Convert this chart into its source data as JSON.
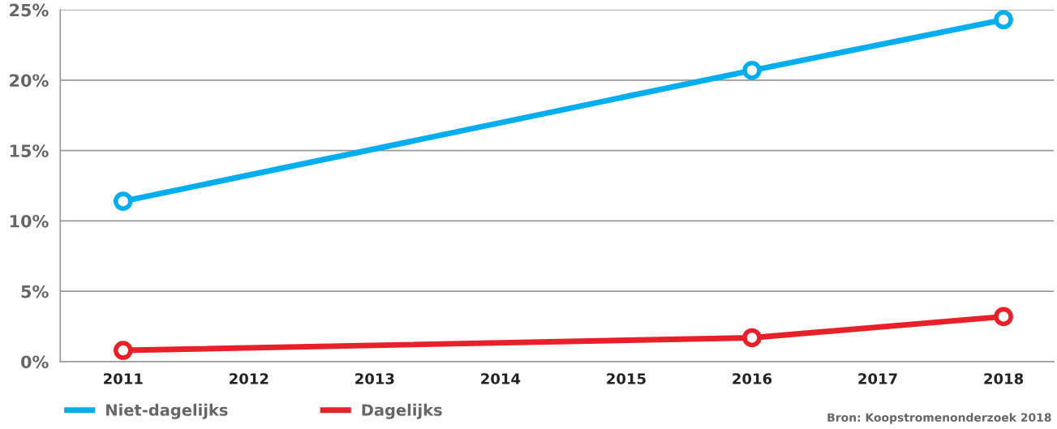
{
  "chart_data": {
    "type": "line",
    "x": [
      2011,
      2016,
      2018
    ],
    "series": [
      {
        "name": "Niet-dagelijks",
        "color": "#00aeef",
        "values": [
          11.4,
          20.7,
          24.3
        ]
      },
      {
        "name": "Dagelijks",
        "color": "#e8202a",
        "values": [
          0.8,
          1.7,
          3.2
        ]
      }
    ],
    "xlim": [
      2010.5,
      2018.4
    ],
    "xticks": [
      2011,
      2012,
      2013,
      2014,
      2015,
      2016,
      2017,
      2018
    ],
    "ylim": [
      0,
      25
    ],
    "yticks": [
      {
        "value": 0,
        "label": "0%"
      },
      {
        "value": 5,
        "label": "5%"
      },
      {
        "value": 10,
        "label": "10%"
      },
      {
        "value": 15,
        "label": "15%"
      },
      {
        "value": 20,
        "label": "20%"
      },
      {
        "value": 25,
        "label": "25%"
      }
    ],
    "grid": "y",
    "legend": "bottom left",
    "marker": "circle",
    "line_style": "solid",
    "annotations": [
      "Bron: Koopstromenonderzoek 2018"
    ]
  }
}
